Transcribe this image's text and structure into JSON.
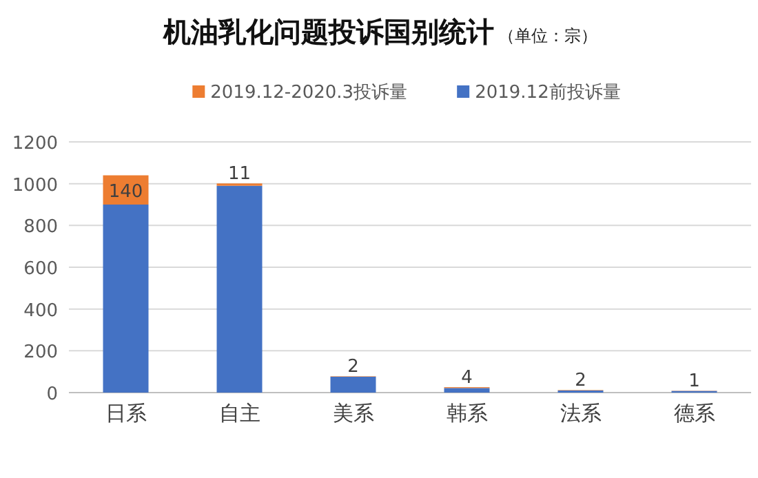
{
  "chart_data": {
    "type": "bar",
    "title": "机油乳化问题投诉国别统计",
    "subtitle": "（单位：宗）",
    "categories": [
      "日系",
      "自主",
      "美系",
      "韩系",
      "法系",
      "德系"
    ],
    "stacked": true,
    "series": [
      {
        "name": "2019.12前投诉量",
        "color": "#4472c4",
        "values": [
          900,
          990,
          76,
          22,
          10,
          8
        ]
      },
      {
        "name": "2019.12-2020.3投诉量",
        "color": "#ed7d31",
        "values": [
          140,
          11,
          2,
          4,
          2,
          1
        ],
        "value_labels": [
          "140",
          "11",
          "2",
          "4",
          "2",
          "1"
        ]
      }
    ],
    "ylim": [
      0,
      1200
    ],
    "yticks": [
      0,
      200,
      400,
      600,
      800,
      1000,
      1200
    ],
    "grid": "y",
    "legend": "top"
  }
}
